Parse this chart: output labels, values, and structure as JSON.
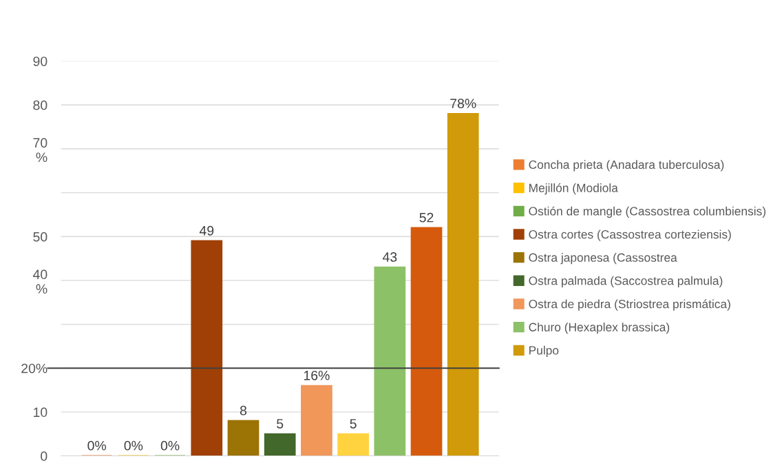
{
  "chart_data": {
    "type": "bar",
    "categories": [
      null
    ],
    "series": [
      {
        "name": "Concha prieta (Anadara tuberculosa)",
        "color": "#ed7d31",
        "values": [
          0
        ],
        "value_labels": [
          "0%"
        ]
      },
      {
        "name": "Mejillón (Modiola",
        "color": "#ffc000",
        "values": [
          0
        ],
        "value_labels": [
          "0%"
        ]
      },
      {
        "name": "Ostión de mangle (Cassostrea columbiensis)",
        "color": "#70ad47",
        "values": [
          0
        ],
        "value_labels": [
          "0%"
        ]
      },
      {
        "name": "Ostra cortes (Cassostrea corteziensis)",
        "color": "#a04006",
        "values": [
          49
        ],
        "value_labels": [
          "49"
        ]
      },
      {
        "name": "Ostra japonesa (Cassostrea",
        "color": "#9c7305",
        "values": [
          8
        ],
        "value_labels": [
          "8"
        ]
      },
      {
        "name": "Ostra palmada (Saccostrea palmula)",
        "color": "#43682b",
        "values": [
          5
        ],
        "value_labels": [
          "5"
        ]
      },
      {
        "name": "Ostra de piedra (Striostrea prismática)",
        "color": "#f1975a",
        "values": [
          16
        ],
        "value_labels": [
          "16%"
        ]
      },
      {
        "color": "#ffd23f",
        "values": [
          5
        ],
        "value_labels": [
          "5"
        ]
      },
      {
        "name": "Churo (Hexaplex brassica)",
        "color": "#8cc168",
        "values": [
          43
        ],
        "value_labels": [
          "43"
        ]
      },
      {
        "color": "#d65a0d",
        "values": [
          52
        ],
        "value_labels": [
          "52"
        ]
      },
      {
        "name": "Pulpo",
        "color": "#d09a0a",
        "values": [
          78
        ],
        "value_labels": [
          "78%"
        ]
      }
    ],
    "ylim": [
      0,
      90
    ],
    "yticks": [
      0,
      10,
      {
        "value": 20,
        "label": "20%"
      },
      {
        "value": 30,
        "label": null
      },
      {
        "value": 40,
        "label": "40\n%"
      },
      50,
      {
        "value": 60,
        "label": null
      },
      {
        "value": 70,
        "label": "70\n%"
      },
      80,
      90
    ],
    "ref_lines": [
      {
        "axis": "y",
        "value": 20,
        "color": "#404040"
      }
    ],
    "grid": "y",
    "legend": "right",
    "tick_labels": "y"
  }
}
